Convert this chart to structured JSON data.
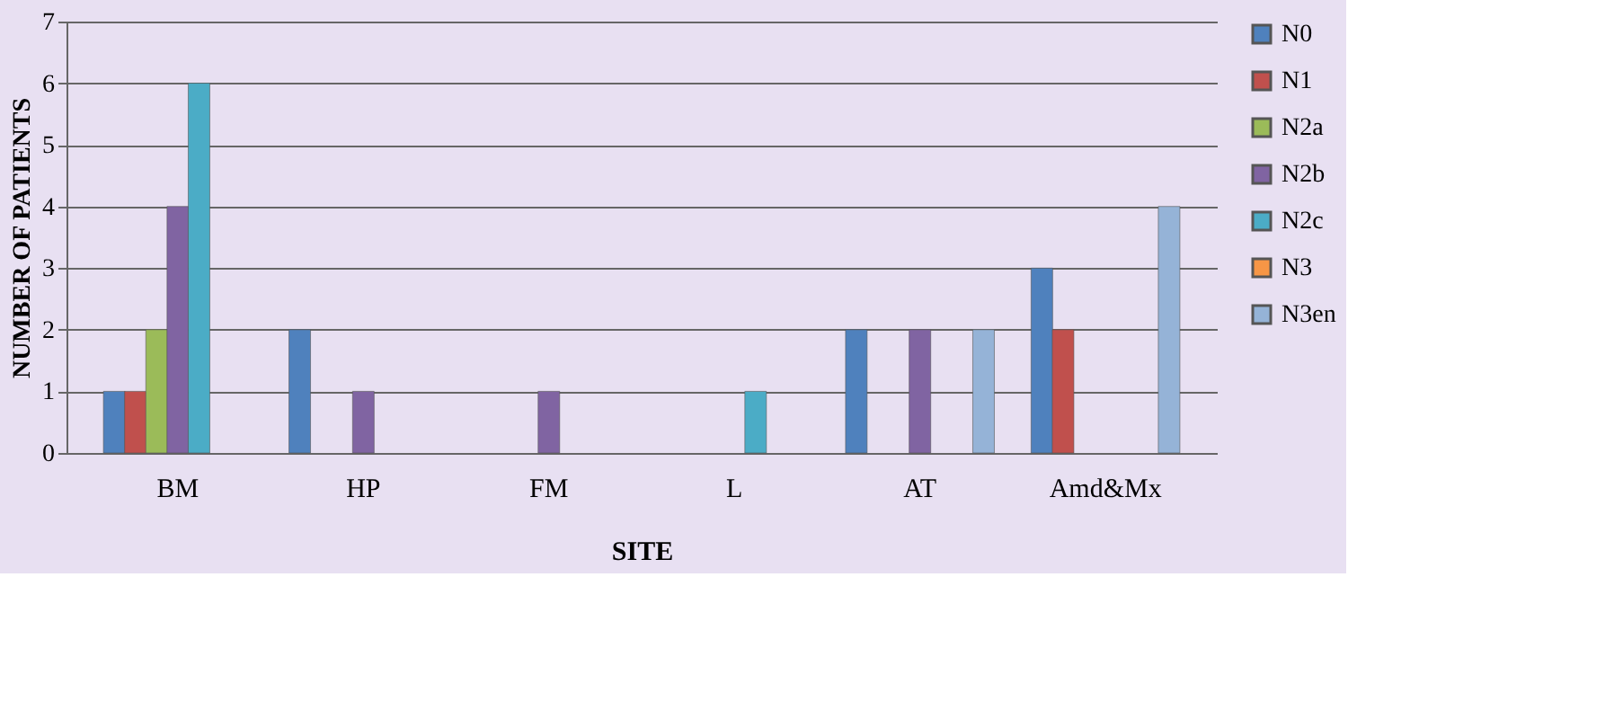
{
  "chart_data": {
    "type": "bar",
    "xlabel": "SITE",
    "ylabel": "NUMBER OF PATIENTS",
    "categories": [
      "BM",
      "HP",
      "FM",
      "L",
      "AT",
      "Amd&Mx"
    ],
    "series": [
      {
        "name": "N0",
        "color": "#4f81bd",
        "values": [
          1,
          2,
          null,
          null,
          2,
          3
        ]
      },
      {
        "name": "N1",
        "color": "#c0504d",
        "values": [
          1,
          null,
          null,
          null,
          null,
          2
        ]
      },
      {
        "name": "N2a",
        "color": "#9bbb59",
        "values": [
          2,
          null,
          null,
          null,
          null,
          null
        ]
      },
      {
        "name": "N2b",
        "color": "#8064a2",
        "values": [
          4,
          1,
          1,
          null,
          2,
          null
        ]
      },
      {
        "name": "N2c",
        "color": "#4bacc6",
        "values": [
          6,
          null,
          null,
          1,
          null,
          null
        ]
      },
      {
        "name": "N3",
        "color": "#f79646",
        "values": [
          null,
          null,
          null,
          null,
          null,
          null
        ]
      },
      {
        "name": "N3en",
        "color": "#95b3d7",
        "values": [
          null,
          null,
          null,
          null,
          2,
          4
        ]
      }
    ],
    "ylim": [
      0,
      7
    ],
    "yticks": [
      0,
      1,
      2,
      3,
      4,
      5,
      6,
      7
    ],
    "grid": "y",
    "legend": "right"
  }
}
